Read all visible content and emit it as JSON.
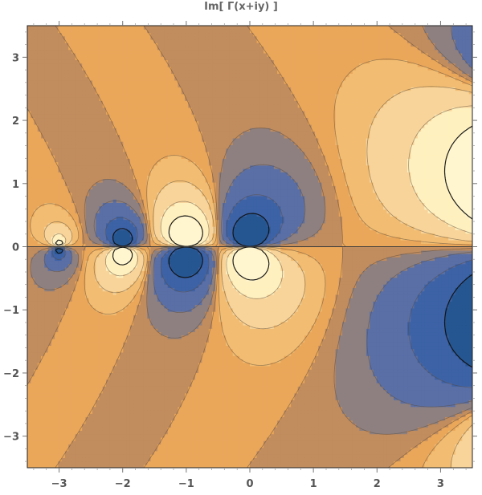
{
  "chart_data": {
    "type": "contour",
    "title": "Im[ Γ(x+iy) ]",
    "function": "Im[Gamma(x+iy)]",
    "xlim": [
      -3.5,
      3.5
    ],
    "ylim": [
      -3.5,
      3.5
    ],
    "x_ticks": [
      -3,
      -2,
      -1,
      0,
      1,
      2,
      3
    ],
    "y_ticks": [
      -3,
      -2,
      -1,
      0,
      1,
      2,
      3
    ],
    "tick_labels_x": [
      "−3",
      "−2",
      "−1",
      "0",
      "1",
      "2",
      "3"
    ],
    "tick_labels_y": [
      "−3",
      "−2",
      "−1",
      "0",
      "1",
      "2",
      "3"
    ],
    "contour_levels": [
      -1.5,
      -0.75,
      -0.3,
      -0.1,
      0,
      0.1,
      0.3,
      0.75,
      1.5
    ],
    "colormap": [
      "#265691",
      "#3d62a6",
      "#5a6fa6",
      "#8e8080",
      "#c18c5e",
      "#eaa75a",
      "#f2bd72",
      "#f8d49a",
      "#fff0bf",
      "#fff6d0"
    ],
    "grid": false,
    "legend": "none"
  }
}
